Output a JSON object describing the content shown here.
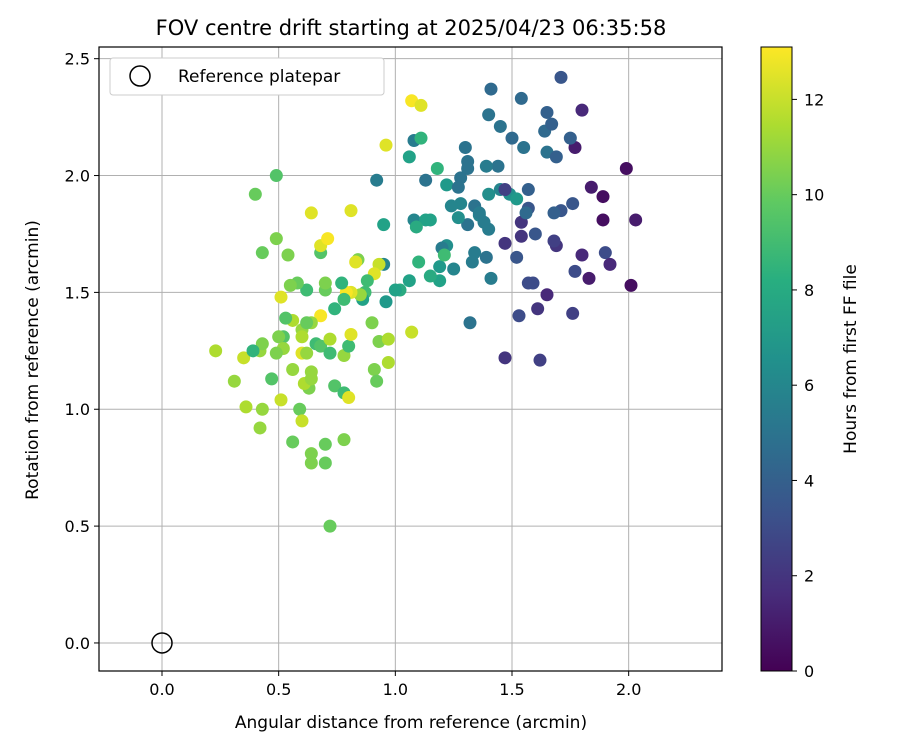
{
  "chart_data": {
    "type": "scatter",
    "title": "FOV centre drift starting at 2025/04/23 06:35:58",
    "xlabel": "Angular distance from reference (arcmin)",
    "ylabel": "Rotation from reference (arcmin)",
    "xlim": [
      -0.27,
      2.4
    ],
    "ylim": [
      -0.12,
      2.55
    ],
    "xticks": [
      0.0,
      0.5,
      1.0,
      1.5,
      2.0
    ],
    "yticks": [
      0.0,
      0.5,
      1.0,
      1.5,
      2.0,
      2.5
    ],
    "grid": true,
    "colormap": "viridis",
    "colorbar": {
      "label": "Hours from first FF file",
      "range": [
        0,
        13.1
      ],
      "ticks": [
        0,
        2,
        4,
        6,
        8,
        10,
        12
      ]
    },
    "legend": {
      "placement": "top-left",
      "entries": [
        {
          "label": "Reference platepar",
          "marker": "hollow-circle",
          "color": "#000000"
        }
      ]
    },
    "reference_point": {
      "x": 0.0,
      "y": 0.0
    },
    "points": [
      [
        1.71,
        2.42,
        3.5
      ],
      [
        1.8,
        2.28,
        1.5
      ],
      [
        1.77,
        2.12,
        1.0
      ],
      [
        1.99,
        2.03,
        0.5
      ],
      [
        1.84,
        1.95,
        1.0
      ],
      [
        1.89,
        1.91,
        0.5
      ],
      [
        1.89,
        1.81,
        0.5
      ],
      [
        2.03,
        1.81,
        1.0
      ],
      [
        1.9,
        1.67,
        3.0
      ],
      [
        1.92,
        1.62,
        1.5
      ],
      [
        1.8,
        1.66,
        1.5
      ],
      [
        1.83,
        1.56,
        1.0
      ],
      [
        2.01,
        1.53,
        0.5
      ],
      [
        1.76,
        1.41,
        2.5
      ],
      [
        1.65,
        1.49,
        1.5
      ],
      [
        1.61,
        1.43,
        2.0
      ],
      [
        1.47,
        1.22,
        2.0
      ],
      [
        1.62,
        1.21,
        2.5
      ],
      [
        1.53,
        1.4,
        3.0
      ],
      [
        1.47,
        1.71,
        2.0
      ],
      [
        1.54,
        1.74,
        2.0
      ],
      [
        1.54,
        1.8,
        2.0
      ],
      [
        1.57,
        1.54,
        3.0
      ],
      [
        1.59,
        1.54,
        3.0
      ],
      [
        1.52,
        1.65,
        3.5
      ],
      [
        1.69,
        1.7,
        2.0
      ],
      [
        1.68,
        1.72,
        2.5
      ],
      [
        1.77,
        1.59,
        3.0
      ],
      [
        1.76,
        1.88,
        3.5
      ],
      [
        1.71,
        1.85,
        3.5
      ],
      [
        1.68,
        1.84,
        4.0
      ],
      [
        1.64,
        2.19,
        4.5
      ],
      [
        1.67,
        2.22,
        4.0
      ],
      [
        1.65,
        2.27,
        4.0
      ],
      [
        1.75,
        2.16,
        4.0
      ],
      [
        1.65,
        2.1,
        5.0
      ],
      [
        1.69,
        2.08,
        4.0
      ],
      [
        1.57,
        1.94,
        4.0
      ],
      [
        1.5,
        2.16,
        4.5
      ],
      [
        1.55,
        2.12,
        5.0
      ],
      [
        1.54,
        2.33,
        4.5
      ],
      [
        1.41,
        2.37,
        4.5
      ],
      [
        1.45,
        2.21,
        5.0
      ],
      [
        1.4,
        2.26,
        5.0
      ],
      [
        1.44,
        2.04,
        5.0
      ],
      [
        1.45,
        1.94,
        6.0
      ],
      [
        1.49,
        1.92,
        6.5
      ],
      [
        1.52,
        1.9,
        7.0
      ],
      [
        1.4,
        1.92,
        6.5
      ],
      [
        1.4,
        1.77,
        5.5
      ],
      [
        1.39,
        2.04,
        5.5
      ],
      [
        1.3,
        2.12,
        5.0
      ],
      [
        1.31,
        2.06,
        5.0
      ],
      [
        1.31,
        2.03,
        5.0
      ],
      [
        1.28,
        1.99,
        5.0
      ],
      [
        1.28,
        1.88,
        6.0
      ],
      [
        1.34,
        1.87,
        5.0
      ],
      [
        1.36,
        1.83,
        6.0
      ],
      [
        1.38,
        1.8,
        5.5
      ],
      [
        1.31,
        1.79,
        5.0
      ],
      [
        1.27,
        1.82,
        6.5
      ],
      [
        1.22,
        1.7,
        6.5
      ],
      [
        1.2,
        1.69,
        5.5
      ],
      [
        1.39,
        1.65,
        5.0
      ],
      [
        1.34,
        1.67,
        5.5
      ],
      [
        1.33,
        1.63,
        5.5
      ],
      [
        1.41,
        1.56,
        5.5
      ],
      [
        1.32,
        1.37,
        5.0
      ],
      [
        1.19,
        1.61,
        7.0
      ],
      [
        1.19,
        1.55,
        7.5
      ],
      [
        1.21,
        1.66,
        9.0
      ],
      [
        1.13,
        1.98,
        5.0
      ],
      [
        1.22,
        1.96,
        7.0
      ],
      [
        1.18,
        2.03,
        8.5
      ],
      [
        1.08,
        2.15,
        5.5
      ],
      [
        1.11,
        2.16,
        8.5
      ],
      [
        1.06,
        2.08,
        7.5
      ],
      [
        0.92,
        1.98,
        5.5
      ],
      [
        1.08,
        1.81,
        6.0
      ],
      [
        1.13,
        1.81,
        7.5
      ],
      [
        1.09,
        1.78,
        8.0
      ],
      [
        0.95,
        1.79,
        7.5
      ],
      [
        1.1,
        1.63,
        8.5
      ],
      [
        1.06,
        1.55,
        7.5
      ],
      [
        1.02,
        1.51,
        8.0
      ],
      [
        1.0,
        1.51,
        7.5
      ],
      [
        0.95,
        1.62,
        6.0
      ],
      [
        0.96,
        1.46,
        7.0
      ],
      [
        0.93,
        1.62,
        12.0
      ],
      [
        0.91,
        1.58,
        12.5
      ],
      [
        0.87,
        1.5,
        9.0
      ],
      [
        0.86,
        1.47,
        7.5
      ],
      [
        0.85,
        1.49,
        11.0
      ],
      [
        0.84,
        1.64,
        10.5
      ],
      [
        0.83,
        1.63,
        12.5
      ],
      [
        0.81,
        1.5,
        12.5
      ],
      [
        0.79,
        1.5,
        13.0
      ],
      [
        0.77,
        1.54,
        8.5
      ],
      [
        0.78,
        1.47,
        9.0
      ],
      [
        0.74,
        1.43,
        8.5
      ],
      [
        0.7,
        1.51,
        10.0
      ],
      [
        0.7,
        1.54,
        10.5
      ],
      [
        0.68,
        1.67,
        9.5
      ],
      [
        0.68,
        1.7,
        12.5
      ],
      [
        0.71,
        1.73,
        13.0
      ],
      [
        0.81,
        1.85,
        12.5
      ],
      [
        0.64,
        1.84,
        12.5
      ],
      [
        0.68,
        1.4,
        13.0
      ],
      [
        0.64,
        1.37,
        11.0
      ],
      [
        0.62,
        1.51,
        9.0
      ],
      [
        0.58,
        1.54,
        10.0
      ],
      [
        0.55,
        1.53,
        10.5
      ],
      [
        0.51,
        1.48,
        12.5
      ],
      [
        0.54,
        1.66,
        10.5
      ],
      [
        0.49,
        1.73,
        10.5
      ],
      [
        0.43,
        1.67,
        10.0
      ],
      [
        0.4,
        1.92,
        10.0
      ],
      [
        0.49,
        2.0,
        9.5
      ],
      [
        0.56,
        1.38,
        11.5
      ],
      [
        0.53,
        1.39,
        9.5
      ],
      [
        0.6,
        1.34,
        11.0
      ],
      [
        0.62,
        1.37,
        10.0
      ],
      [
        0.6,
        1.31,
        11.5
      ],
      [
        0.52,
        1.31,
        9.5
      ],
      [
        0.5,
        1.31,
        10.5
      ],
      [
        0.52,
        1.26,
        11.0
      ],
      [
        0.6,
        1.24,
        12.5
      ],
      [
        0.62,
        1.24,
        11.0
      ],
      [
        0.66,
        1.28,
        9.0
      ],
      [
        0.68,
        1.27,
        9.5
      ],
      [
        0.72,
        1.24,
        9.0
      ],
      [
        0.72,
        1.3,
        11.5
      ],
      [
        0.78,
        1.23,
        11.0
      ],
      [
        0.8,
        1.27,
        9.0
      ],
      [
        0.81,
        1.32,
        12.5
      ],
      [
        0.9,
        1.37,
        10.5
      ],
      [
        0.93,
        1.29,
        10.5
      ],
      [
        0.97,
        1.3,
        11.5
      ],
      [
        0.97,
        1.2,
        11.5
      ],
      [
        0.91,
        1.17,
        10.5
      ],
      [
        0.92,
        1.12,
        10.0
      ],
      [
        1.07,
        1.33,
        12.0
      ],
      [
        0.74,
        1.1,
        9.5
      ],
      [
        0.78,
        1.07,
        9.0
      ],
      [
        0.8,
        1.05,
        12.5
      ],
      [
        0.78,
        0.87,
        10.5
      ],
      [
        0.7,
        0.85,
        10.0
      ],
      [
        0.64,
        0.81,
        10.5
      ],
      [
        0.64,
        0.77,
        10.5
      ],
      [
        0.7,
        0.77,
        10.0
      ],
      [
        0.56,
        0.86,
        10.0
      ],
      [
        0.59,
        1.0,
        10.0
      ],
      [
        0.6,
        0.95,
        12.0
      ],
      [
        0.63,
        1.09,
        10.5
      ],
      [
        0.61,
        1.11,
        11.5
      ],
      [
        0.64,
        1.13,
        11.0
      ],
      [
        0.64,
        1.16,
        11.0
      ],
      [
        0.56,
        1.17,
        11.0
      ],
      [
        0.51,
        1.04,
        12.0
      ],
      [
        0.47,
        1.13,
        9.5
      ],
      [
        0.43,
        1.0,
        11.0
      ],
      [
        0.42,
        0.92,
        11.0
      ],
      [
        0.36,
        1.01,
        11.5
      ],
      [
        0.31,
        1.12,
        11.0
      ],
      [
        0.35,
        1.22,
        12.0
      ],
      [
        0.42,
        1.25,
        11.0
      ],
      [
        0.43,
        1.28,
        10.5
      ],
      [
        0.49,
        1.24,
        10.5
      ],
      [
        0.39,
        1.25,
        8.5
      ],
      [
        0.23,
        1.25,
        11.5
      ],
      [
        0.72,
        0.5,
        10.0
      ],
      [
        0.96,
        2.13,
        12.5
      ],
      [
        1.07,
        2.32,
        13.0
      ],
      [
        1.11,
        2.3,
        12.5
      ],
      [
        1.15,
        1.81,
        7.5
      ],
      [
        1.24,
        1.87,
        6.0
      ],
      [
        1.27,
        1.95,
        5.0
      ],
      [
        1.36,
        1.84,
        5.5
      ],
      [
        1.57,
        1.86,
        3.5
      ],
      [
        1.47,
        1.94,
        2.5
      ],
      [
        1.56,
        1.84,
        4.5
      ],
      [
        1.6,
        1.75,
        3.5
      ],
      [
        1.15,
        1.57,
        8.0
      ],
      [
        1.25,
        1.6,
        6.0
      ],
      [
        0.88,
        1.55,
        9.0
      ]
    ]
  }
}
